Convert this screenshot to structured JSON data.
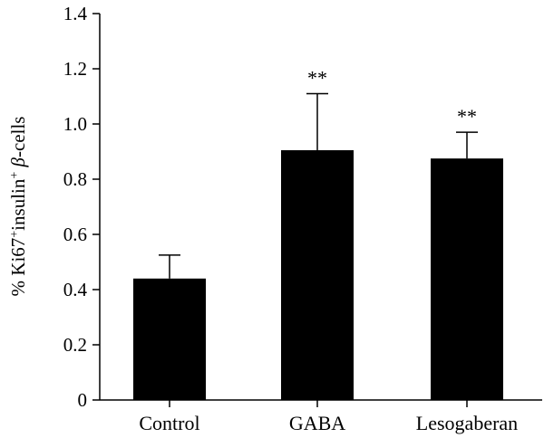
{
  "chart_data": {
    "type": "bar",
    "title": "",
    "xlabel": "",
    "ylabel": {
      "prefix": "% Ki67",
      "sup1": "+",
      "mid": "insulin",
      "sup2": "+",
      "greek": " β",
      "suffix": "-cells"
    },
    "categories": [
      "Control",
      "GABA",
      "Lesogaberan"
    ],
    "values": [
      0.44,
      0.905,
      0.875
    ],
    "errors": [
      0.085,
      0.205,
      0.095
    ],
    "significance": [
      "",
      "**",
      "**"
    ],
    "ylim": [
      0,
      1.4
    ],
    "yticks": [
      0,
      0.2,
      0.4,
      0.6,
      0.8,
      1.0,
      1.2,
      1.4
    ],
    "ytick_labels": [
      "0",
      "0.2",
      "0.4",
      "0.6",
      "0.8",
      "1.0",
      "1.2",
      "1.4"
    ],
    "bar_color": "#000000",
    "grid": false
  }
}
